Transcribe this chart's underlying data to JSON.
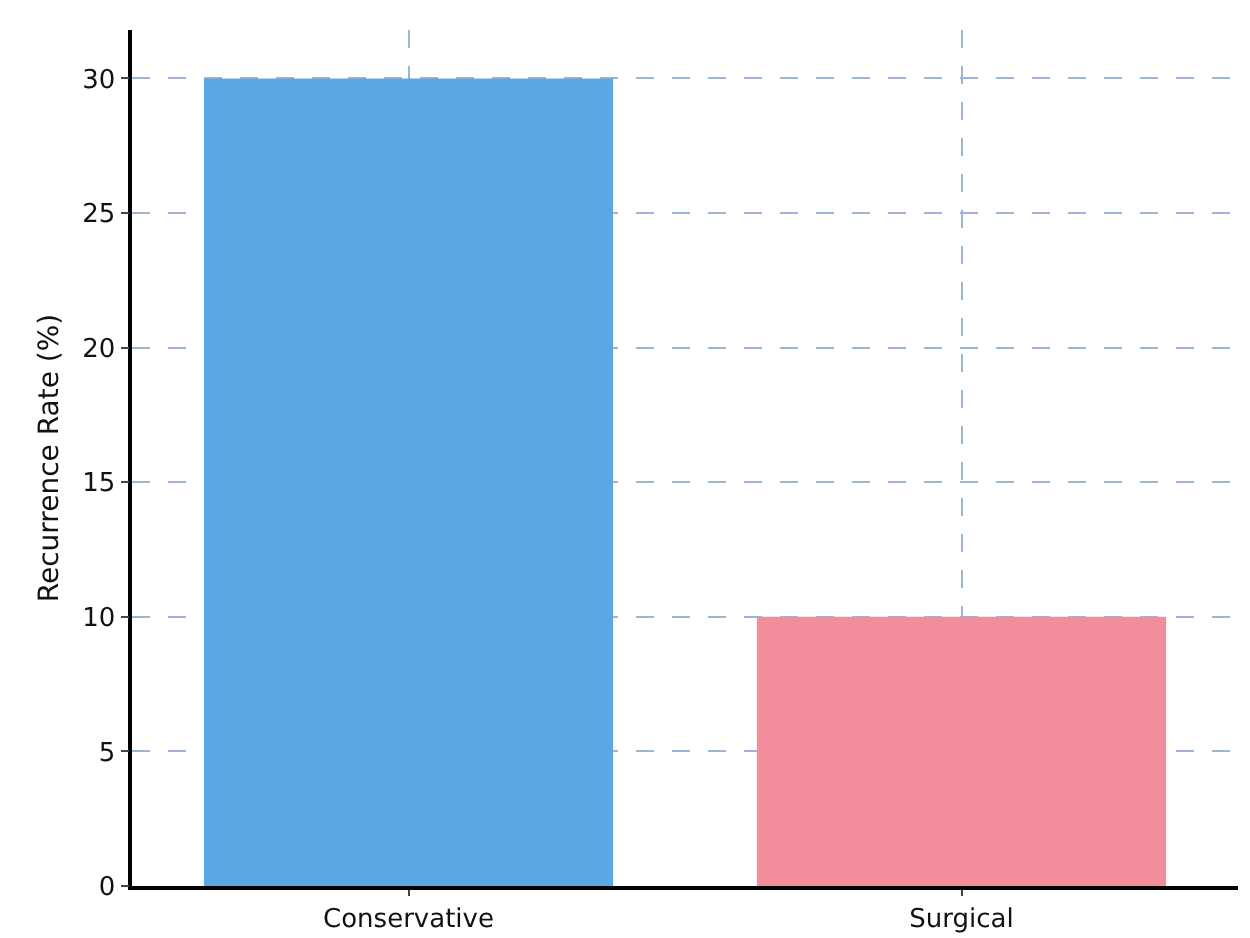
{
  "chart_data": {
    "type": "bar",
    "ylabel": "Recurrence Rate (%)",
    "categories": [
      "Conservative",
      "Surgical"
    ],
    "values": [
      30,
      10
    ],
    "colors": [
      "#5ca8e4",
      "#f28e9c"
    ],
    "ylim": [
      0,
      31.8
    ],
    "yticks": [
      0,
      5,
      10,
      15,
      20,
      25,
      30
    ],
    "grid": true
  }
}
